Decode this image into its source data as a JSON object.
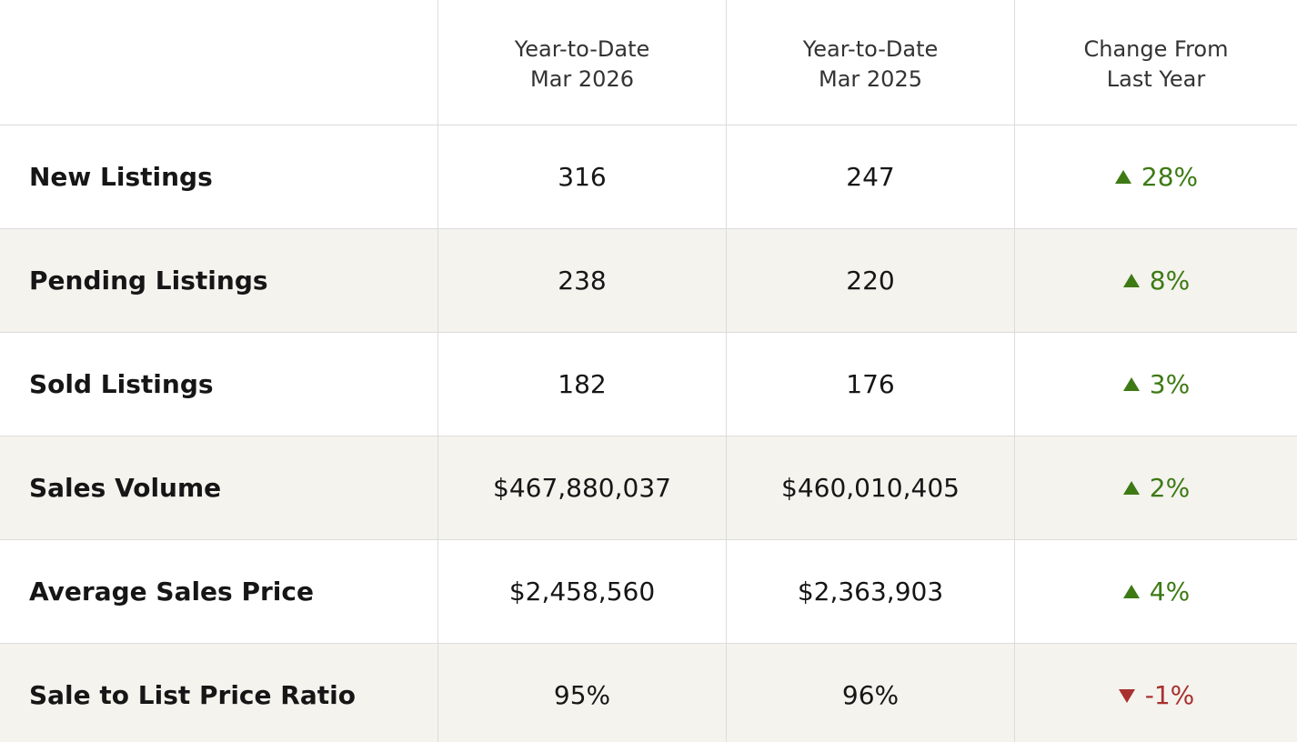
{
  "table": {
    "header": [
      [
        "Year-to-Date",
        "Mar 2026"
      ],
      [
        "Year-to-Date",
        "Mar 2025"
      ],
      [
        "Change From",
        "Last Year"
      ]
    ],
    "rows": [
      {
        "label": "New Listings",
        "current": "316",
        "previous": "247",
        "change": "28%",
        "direction": "up"
      },
      {
        "label": "Pending Listings",
        "current": "238",
        "previous": "220",
        "change": "8%",
        "direction": "up"
      },
      {
        "label": "Sold Listings",
        "current": "182",
        "previous": "176",
        "change": "3%",
        "direction": "up"
      },
      {
        "label": "Sales Volume",
        "current": "$467,880,037",
        "previous": "$460,010,405",
        "change": "2%",
        "direction": "up"
      },
      {
        "label": "Average Sales Price",
        "current": "$2,458,560",
        "previous": "$2,363,903",
        "change": "4%",
        "direction": "up"
      },
      {
        "label": "Sale to List Price Ratio",
        "current": "95%",
        "previous": "96%",
        "change": "-1%",
        "direction": "down"
      }
    ],
    "colors": {
      "up": "#3d7a14",
      "down": "#a8312f"
    }
  }
}
